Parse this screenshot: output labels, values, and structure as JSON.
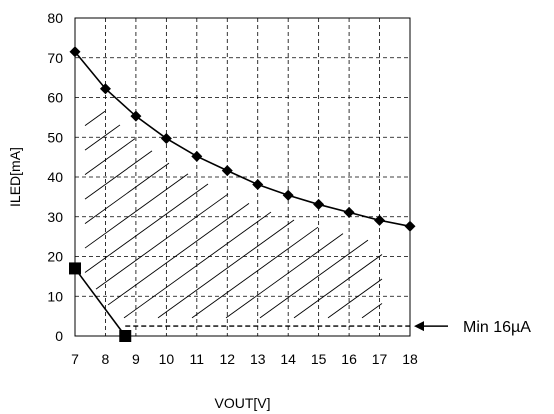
{
  "chart_data": {
    "type": "line",
    "title": "",
    "xlabel": "VOUT[V]",
    "ylabel": "ILED[mA]",
    "xlim": [
      7,
      18
    ],
    "ylim": [
      0,
      80
    ],
    "x_ticks": [
      7,
      8,
      9,
      10,
      11,
      12,
      13,
      14,
      15,
      16,
      17,
      18
    ],
    "y_ticks": [
      0,
      10,
      20,
      30,
      40,
      50,
      60,
      70,
      80
    ],
    "grid": true,
    "grid_style": "dashed",
    "legend": false,
    "series": [
      {
        "marker": "diamond",
        "x": [
          7,
          8,
          9,
          10,
          11,
          12,
          13,
          14,
          15,
          16,
          17,
          18
        ],
        "y": [
          71.5,
          62.2,
          55.3,
          49.7,
          45.2,
          41.6,
          38.1,
          35.4,
          33.1,
          31.1,
          29.1,
          27.6
        ]
      },
      {
        "marker": "square",
        "x": [
          7,
          8.65
        ],
        "y": [
          17,
          0
        ]
      }
    ],
    "min_line": {
      "y": 2.5,
      "x_start": 8.65,
      "x_end": 18
    },
    "hatched_region": true,
    "annotation": {
      "text": "Min 16µA",
      "arrow": "left"
    },
    "colors": {
      "line": "#000000",
      "grid": "#000000",
      "background": "#ffffff"
    }
  }
}
